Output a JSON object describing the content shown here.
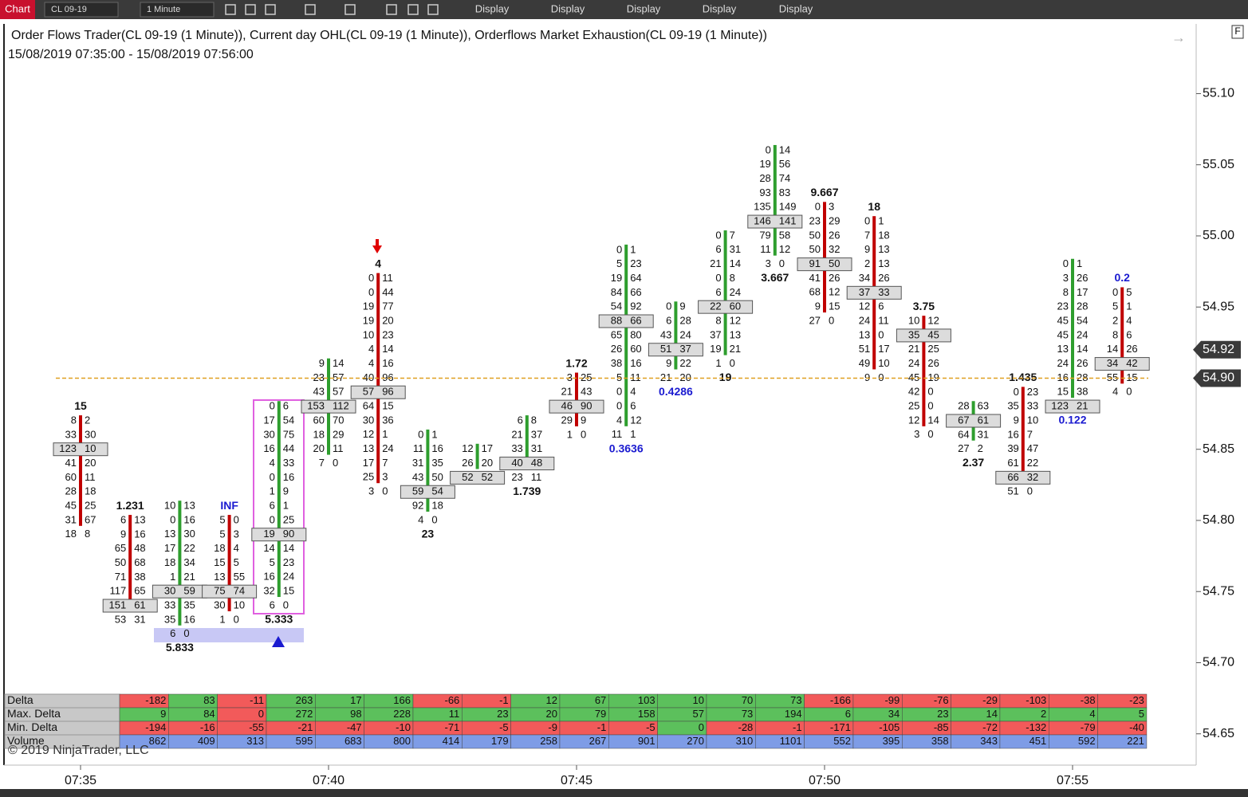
{
  "toolbar": {
    "tab": "Chart",
    "instrument": "CL 09-19",
    "interval": "1 Minute",
    "menus": [
      "Display",
      "Display",
      "Display",
      "Display",
      "Display"
    ],
    "corner": "F"
  },
  "header": {
    "title": "Order Flows Trader(CL 09-19 (1 Minute)), Current day OHL(CL 09-19 (1 Minute)),  Orderflows Market Exhaustion(CL 09-19 (1 Minute))",
    "range": "15/08/2019 07:35:00 - 15/08/2019 07:56:00"
  },
  "price_axis": {
    "ylim": [
      54.628,
      55.149
    ],
    "yticks": [
      {
        "value": 55.1,
        "label": "55.10"
      },
      {
        "value": 55.05,
        "label": "55.05"
      },
      {
        "value": 55.0,
        "label": "55.00"
      },
      {
        "value": 54.95,
        "label": "54.95"
      },
      {
        "value": 54.85,
        "label": "54.85"
      },
      {
        "value": 54.8,
        "label": "54.80"
      },
      {
        "value": 54.75,
        "label": "54.75"
      },
      {
        "value": 54.7,
        "label": "54.70"
      },
      {
        "value": 54.65,
        "label": "54.65"
      }
    ],
    "markers": [
      {
        "value": 54.92,
        "label": "54.92"
      },
      {
        "value": 54.9,
        "label": "54.90"
      }
    ]
  },
  "time_axis": {
    "labels": [
      "07:35",
      "07:40",
      "07:45",
      "07:50",
      "07:55"
    ]
  },
  "footprint": {
    "bars": [
      {
        "top": 54.87,
        "label": "15",
        "label_pos": "top",
        "candle": "#c00000",
        "poc": 2,
        "rows": [
          [
            8,
            2
          ],
          [
            33,
            30
          ],
          [
            123,
            10
          ],
          [
            41,
            20
          ],
          [
            60,
            11
          ],
          [
            28,
            18
          ],
          [
            45,
            25
          ],
          [
            31,
            67
          ],
          [
            18,
            8
          ]
        ]
      },
      {
        "top": 54.8,
        "label": "1.231",
        "label_pos": "top",
        "candle": "#c00000",
        "poc": 6,
        "rows": [
          [
            6,
            13
          ],
          [
            9,
            16
          ],
          [
            65,
            48
          ],
          [
            50,
            68
          ],
          [
            71,
            38
          ],
          [
            117,
            65
          ],
          [
            151,
            61
          ],
          [
            53,
            31
          ]
        ]
      },
      {
        "top": 54.81,
        "label": "5.833",
        "label_pos": "bottom",
        "candle": "#2e9e2e",
        "poc": 6,
        "rows": [
          [
            10,
            13
          ],
          [
            0,
            16
          ],
          [
            13,
            30
          ],
          [
            17,
            22
          ],
          [
            18,
            34
          ],
          [
            1,
            21
          ],
          [
            30,
            59
          ],
          [
            33,
            35
          ],
          [
            35,
            16
          ],
          [
            6,
            0
          ]
        ]
      },
      {
        "top": 54.8,
        "label": "INF",
        "label_pos": "top",
        "label_color": "#1a1ad0",
        "candle": "#c00000",
        "poc": 5,
        "rows": [
          [
            5,
            0
          ],
          [
            5,
            3
          ],
          [
            18,
            4
          ],
          [
            15,
            5
          ],
          [
            13,
            55
          ],
          [
            75,
            74
          ],
          [
            30,
            10
          ],
          [
            1,
            0
          ]
        ]
      },
      {
        "top": 54.88,
        "label": "5.333",
        "label_pos": "bottom",
        "candle": "#2e9e2e",
        "poc": 9,
        "rows": [
          [
            0,
            6
          ],
          [
            17,
            54
          ],
          [
            30,
            75
          ],
          [
            16,
            44
          ],
          [
            4,
            33
          ],
          [
            0,
            16
          ],
          [
            1,
            9
          ],
          [
            6,
            1
          ],
          [
            0,
            25
          ],
          [
            19,
            90
          ],
          [
            14,
            14
          ],
          [
            5,
            23
          ],
          [
            16,
            24
          ],
          [
            32,
            15
          ],
          [
            6,
            0
          ]
        ]
      },
      {
        "top": 54.91,
        "candle": "#2e9e2e",
        "poc": 3,
        "rows": [
          [
            9,
            14
          ],
          [
            23,
            57
          ],
          [
            43,
            57
          ],
          [
            153,
            112
          ],
          [
            60,
            70
          ],
          [
            18,
            29
          ],
          [
            20,
            11
          ],
          [
            7,
            0
          ]
        ]
      },
      {
        "top": 54.97,
        "label": "4",
        "label_pos": "top",
        "candle": "#c00000",
        "poc": 8,
        "rows": [
          [
            0,
            11
          ],
          [
            0,
            44
          ],
          [
            19,
            77
          ],
          [
            19,
            20
          ],
          [
            10,
            23
          ],
          [
            4,
            14
          ],
          [
            4,
            16
          ],
          [
            40,
            96
          ],
          [
            57,
            96
          ],
          [
            64,
            15
          ],
          [
            30,
            36
          ],
          [
            12,
            1
          ],
          [
            13,
            24
          ],
          [
            17,
            7
          ],
          [
            25,
            3
          ],
          [
            3,
            0
          ]
        ]
      },
      {
        "top": 54.86,
        "label": "23",
        "label_pos": "bottom",
        "candle": "#2e9e2e",
        "poc": 4,
        "rows": [
          [
            0,
            1
          ],
          [
            11,
            16
          ],
          [
            31,
            35
          ],
          [
            43,
            50
          ],
          [
            59,
            54
          ],
          [
            92,
            18
          ],
          [
            4,
            0
          ]
        ]
      },
      {
        "top": 54.85,
        "candle": "#2e9e2e",
        "poc": 2,
        "rows": [
          [
            12,
            17
          ],
          [
            26,
            20
          ],
          [
            52,
            52
          ]
        ]
      },
      {
        "top": 54.87,
        "label": "1.739",
        "label_pos": "bottom",
        "candle": "#2e9e2e",
        "poc": 3,
        "rows": [
          [
            6,
            8
          ],
          [
            21,
            37
          ],
          [
            33,
            31
          ],
          [
            40,
            48
          ],
          [
            23,
            11
          ]
        ]
      },
      {
        "top": 54.9,
        "label": "1.72",
        "label_pos": "top",
        "candle": "#c00000",
        "poc": 2,
        "rows": [
          [
            3,
            25
          ],
          [
            21,
            43
          ],
          [
            46,
            90
          ],
          [
            29,
            9
          ],
          [
            1,
            0
          ]
        ]
      },
      {
        "top": 54.99,
        "label": "0.3636",
        "label_pos": "bottom",
        "label_color": "#1a1ad0",
        "candle": "#2e9e2e",
        "poc": 5,
        "rows": [
          [
            0,
            1
          ],
          [
            5,
            23
          ],
          [
            19,
            64
          ],
          [
            84,
            66
          ],
          [
            54,
            92
          ],
          [
            88,
            66
          ],
          [
            65,
            80
          ],
          [
            26,
            60
          ],
          [
            38,
            16
          ],
          [
            5,
            11
          ],
          [
            0,
            4
          ],
          [
            0,
            6
          ],
          [
            4,
            12
          ],
          [
            11,
            1
          ]
        ]
      },
      {
        "top": 54.95,
        "label": "0.4286",
        "label_pos": "bottom",
        "label_color": "#1a1ad0",
        "candle": "#2e9e2e",
        "poc": 3,
        "rows": [
          [
            0,
            9
          ],
          [
            6,
            28
          ],
          [
            43,
            24
          ],
          [
            51,
            37
          ],
          [
            9,
            22
          ],
          [
            21,
            20
          ]
        ]
      },
      {
        "top": 55.0,
        "label": "19",
        "label_pos": "bottom",
        "candle": "#2e9e2e",
        "poc": 5,
        "rows": [
          [
            0,
            7
          ],
          [
            6,
            31
          ],
          [
            21,
            14
          ],
          [
            0,
            8
          ],
          [
            6,
            24
          ],
          [
            22,
            60
          ],
          [
            8,
            12
          ],
          [
            37,
            13
          ],
          [
            19,
            21
          ],
          [
            1,
            0
          ]
        ]
      },
      {
        "top": 55.06,
        "label": "3.667",
        "label_pos": "bottom",
        "candle": "#2e9e2e",
        "poc": 5,
        "rows": [
          [
            0,
            14
          ],
          [
            19,
            56
          ],
          [
            28,
            74
          ],
          [
            93,
            83
          ],
          [
            135,
            149
          ],
          [
            146,
            141
          ],
          [
            79,
            58
          ],
          [
            11,
            12
          ],
          [
            3,
            0
          ]
        ]
      },
      {
        "top": 55.02,
        "label": "9.667",
        "label_pos": "top",
        "candle": "#c00000",
        "poc": 4,
        "rows": [
          [
            0,
            3
          ],
          [
            23,
            29
          ],
          [
            50,
            26
          ],
          [
            50,
            32
          ],
          [
            91,
            50
          ],
          [
            41,
            26
          ],
          [
            68,
            12
          ],
          [
            9,
            15
          ],
          [
            27,
            0
          ]
        ]
      },
      {
        "top": 55.01,
        "label": "18",
        "label_pos": "top",
        "candle": "#c00000",
        "poc": 5,
        "rows": [
          [
            0,
            1
          ],
          [
            7,
            18
          ],
          [
            9,
            13
          ],
          [
            2,
            13
          ],
          [
            34,
            26
          ],
          [
            37,
            33
          ],
          [
            12,
            6
          ],
          [
            24,
            11
          ],
          [
            13,
            0
          ],
          [
            51,
            17
          ],
          [
            49,
            10
          ],
          [
            9,
            0
          ]
        ]
      },
      {
        "top": 54.94,
        "label": "3.75",
        "label_pos": "top",
        "candle": "#c00000",
        "poc": 1,
        "rows": [
          [
            10,
            12
          ],
          [
            35,
            45
          ],
          [
            21,
            25
          ],
          [
            24,
            26
          ],
          [
            45,
            19
          ],
          [
            42,
            0
          ],
          [
            25,
            0
          ],
          [
            12,
            14
          ],
          [
            3,
            0
          ]
        ]
      },
      {
        "top": 54.88,
        "label": "2.37",
        "label_pos": "bottom",
        "candle": "#2e9e2e",
        "poc": 1,
        "rows": [
          [
            28,
            63
          ],
          [
            67,
            61
          ],
          [
            64,
            31
          ],
          [
            27,
            2
          ]
        ]
      },
      {
        "top": 54.89,
        "label": "1.435",
        "label_pos": "top",
        "candle": "#c00000",
        "poc": 6,
        "rows": [
          [
            0,
            23
          ],
          [
            35,
            33
          ],
          [
            9,
            10
          ],
          [
            16,
            7
          ],
          [
            39,
            47
          ],
          [
            61,
            22
          ],
          [
            66,
            32
          ],
          [
            51,
            0
          ]
        ]
      },
      {
        "top": 54.98,
        "label": "0.122",
        "label_pos": "bottom",
        "label_color": "#1a1ad0",
        "candle": "#2e9e2e",
        "poc": 10,
        "rows": [
          [
            0,
            1
          ],
          [
            3,
            26
          ],
          [
            8,
            17
          ],
          [
            23,
            28
          ],
          [
            45,
            54
          ],
          [
            45,
            24
          ],
          [
            13,
            14
          ],
          [
            24,
            26
          ],
          [
            16,
            28
          ],
          [
            15,
            38
          ],
          [
            123,
            21
          ]
        ]
      },
      {
        "top": 54.96,
        "label": "0.2",
        "label_pos": "top",
        "label_color": "#1a1ad0",
        "candle": "#c00000",
        "poc": 5,
        "rows": [
          [
            0,
            5
          ],
          [
            5,
            1
          ],
          [
            2,
            4
          ],
          [
            8,
            6
          ],
          [
            14,
            26
          ],
          [
            34,
            42
          ],
          [
            55,
            15
          ],
          [
            4,
            0
          ]
        ]
      }
    ]
  },
  "table": {
    "rows": [
      {
        "label": "Delta",
        "values": [
          -182,
          83,
          -11,
          263,
          17,
          166,
          -66,
          -1,
          12,
          67,
          103,
          10,
          70,
          73,
          -166,
          -99,
          -76,
          -29,
          -103,
          -38,
          -23
        ]
      },
      {
        "label": "Max. Delta",
        "values": [
          9,
          84,
          0,
          272,
          98,
          228,
          11,
          23,
          20,
          79,
          158,
          57,
          73,
          194,
          6,
          34,
          23,
          14,
          2,
          4,
          5
        ]
      },
      {
        "label": "Min. Delta",
        "values": [
          -194,
          -16,
          -55,
          -21,
          -47,
          -10,
          -71,
          -5,
          -9,
          -1,
          -5,
          0,
          -28,
          -1,
          -171,
          -105,
          -85,
          -72,
          -132,
          -79,
          -40
        ]
      },
      {
        "label": "Volume",
        "values": [
          862,
          409,
          313,
          595,
          683,
          800,
          414,
          179,
          258,
          267,
          901,
          270,
          310,
          1101,
          552,
          395,
          358,
          343,
          451,
          592,
          221
        ]
      }
    ]
  },
  "copyright": "© 2019 NinjaTrader, LLC"
}
